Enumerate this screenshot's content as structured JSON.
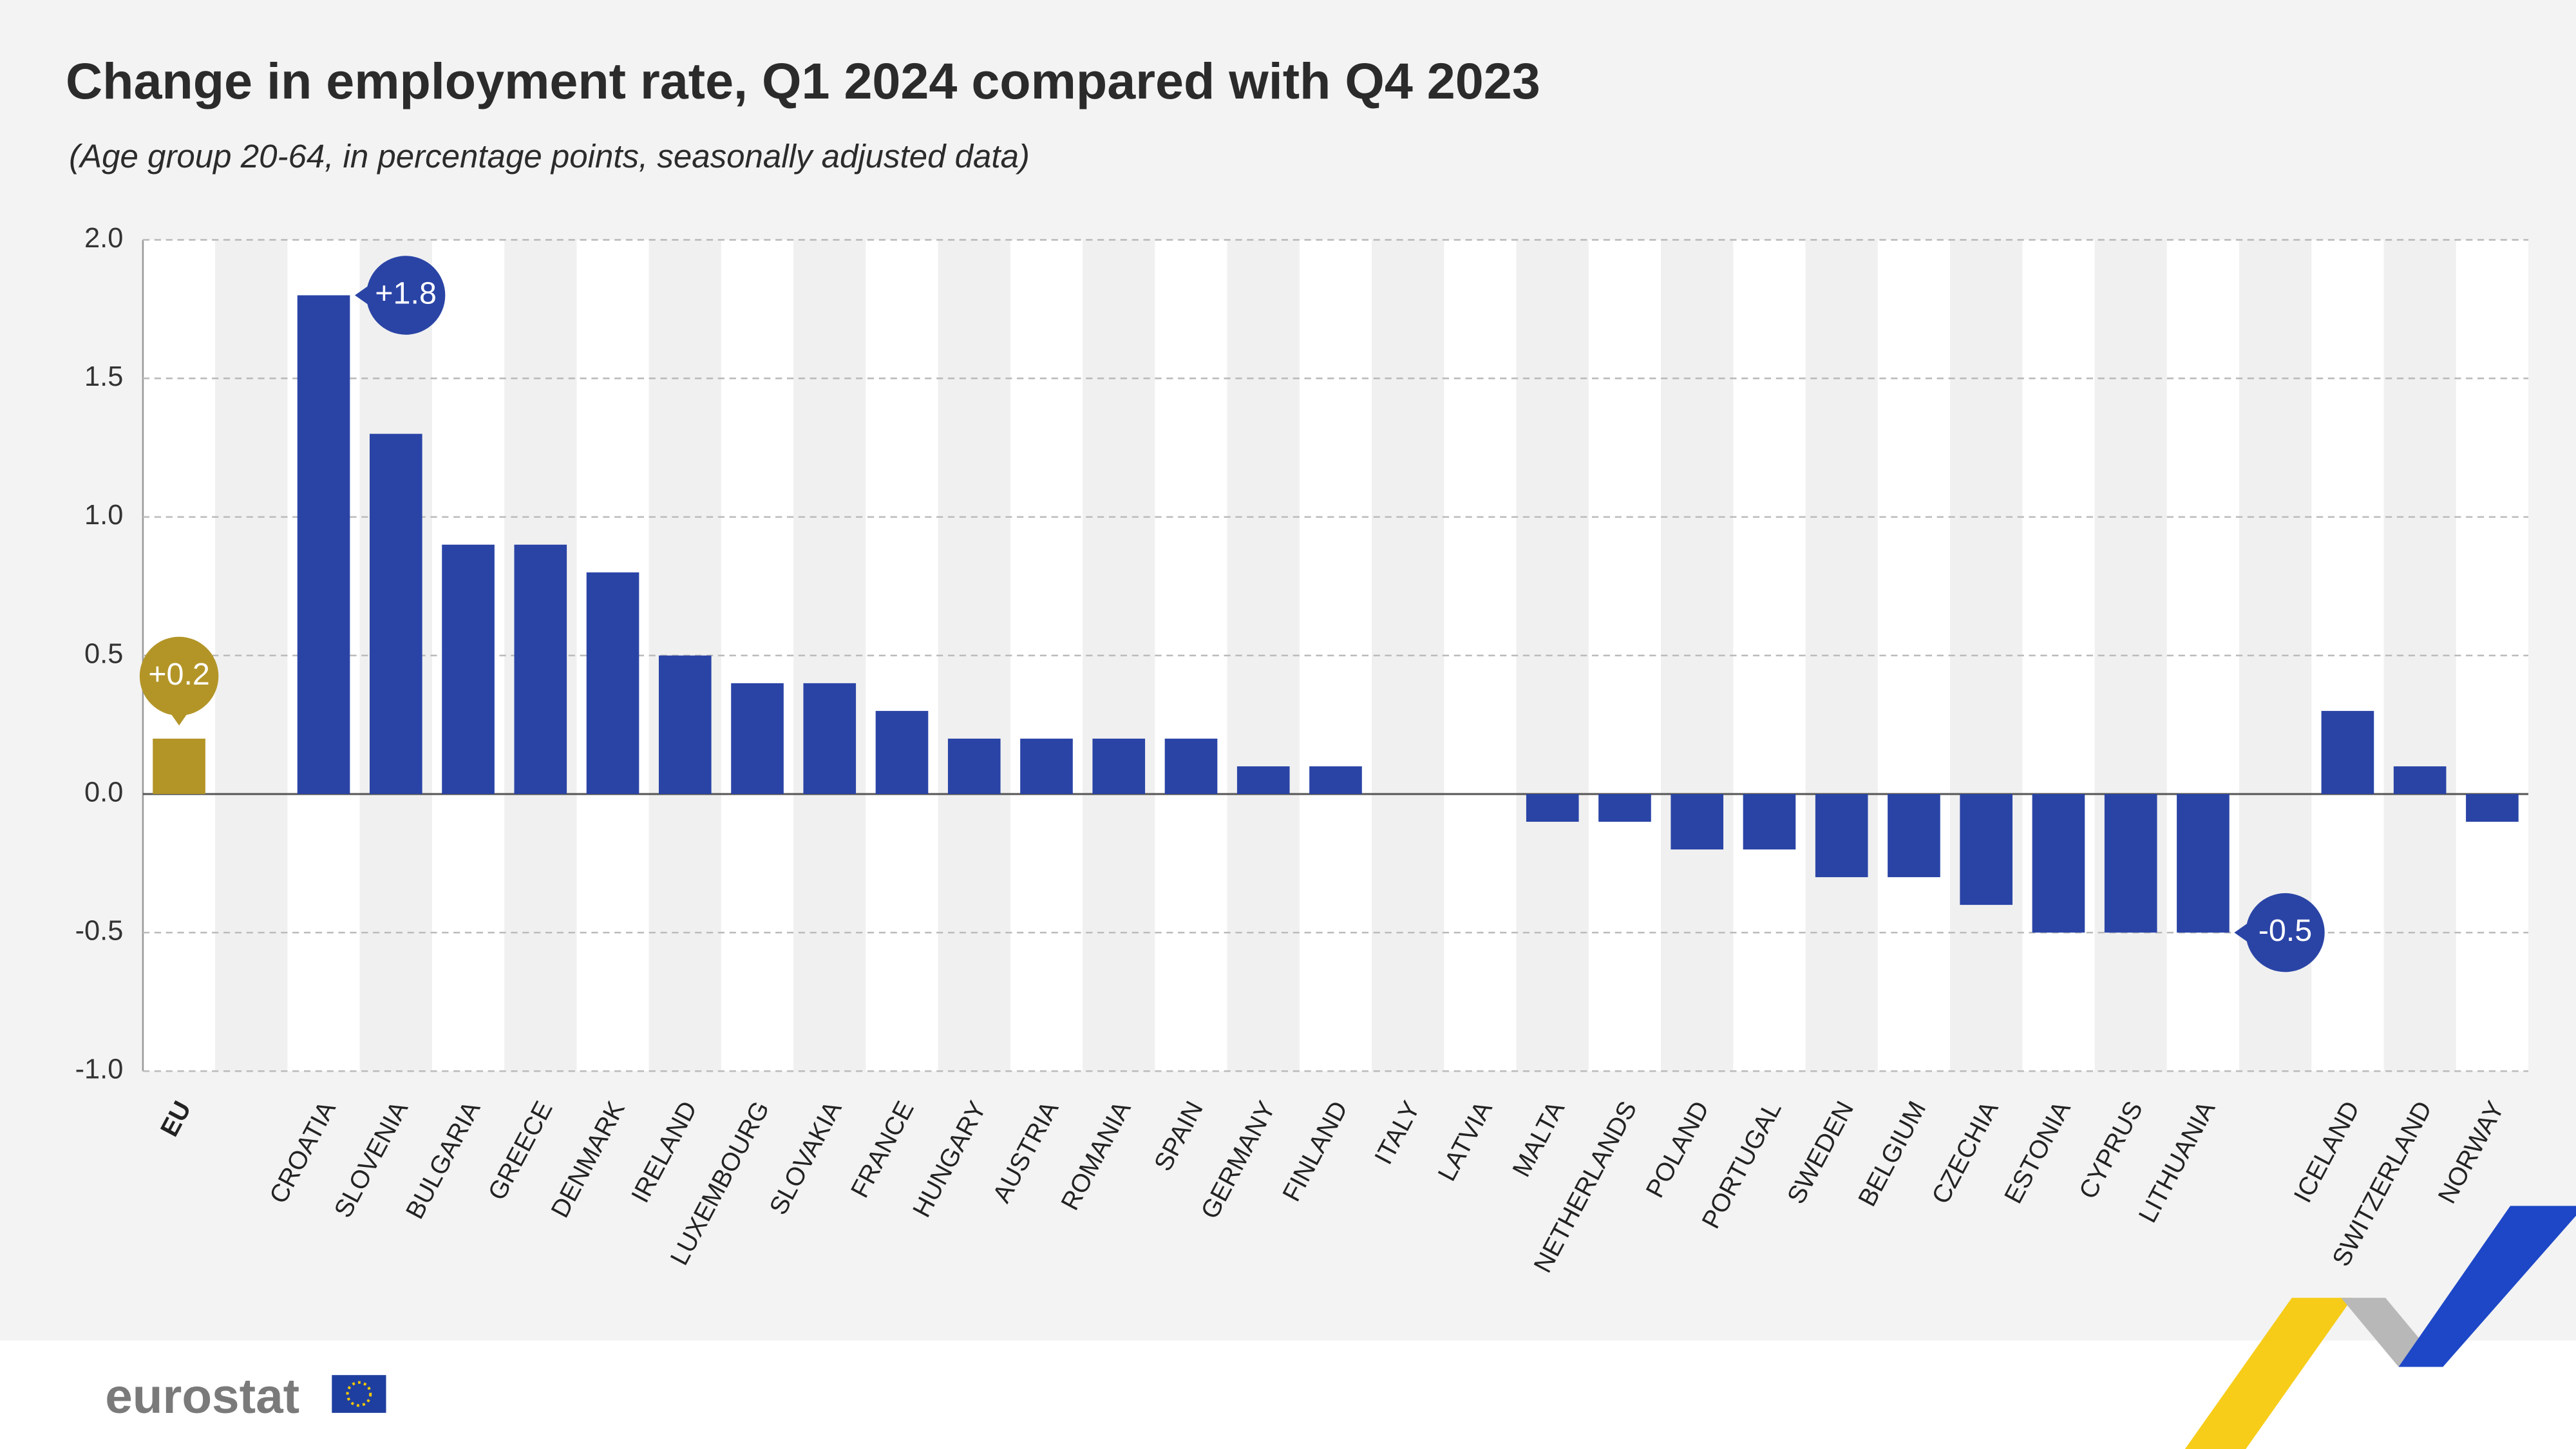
{
  "chart_data": {
    "type": "bar",
    "title": "Change in employment rate, Q1 2024 compared with Q4 2023",
    "subtitle": "(Age group 20-64, in percentage points, seasonally adjusted data)",
    "categories": [
      "EU",
      null,
      "CROATIA",
      "SLOVENIA",
      "BULGARIA",
      "GREECE",
      "DENMARK",
      "IRELAND",
      "LUXEMBOURG",
      "SLOVAKIA",
      "FRANCE",
      "HUNGARY",
      "AUSTRIA",
      "ROMANIA",
      "SPAIN",
      "GERMANY",
      "FINLAND",
      "ITALY",
      "LATVIA",
      "MALTA",
      "NETHERLANDS",
      "POLAND",
      "PORTUGAL",
      "SWEDEN",
      "BELGIUM",
      "CZECHIA",
      "ESTONIA",
      "CYPRUS",
      "LITHUANIA",
      null,
      "ICELAND",
      "SWITZERLAND",
      "NORWAY"
    ],
    "values": [
      0.2,
      null,
      1.8,
      1.3,
      0.9,
      0.9,
      0.8,
      0.5,
      0.4,
      0.4,
      0.3,
      0.2,
      0.2,
      0.2,
      0.2,
      0.1,
      0.1,
      0,
      0,
      -0.1,
      -0.1,
      -0.2,
      -0.2,
      -0.3,
      -0.3,
      -0.4,
      -0.5,
      -0.5,
      -0.5,
      null,
      0.3,
      0.1,
      -0.1
    ],
    "value_labels": [
      "+0.2",
      null,
      "+1.8",
      null,
      null,
      null,
      null,
      null,
      null,
      null,
      null,
      null,
      null,
      null,
      null,
      null,
      null,
      null,
      null,
      null,
      null,
      null,
      null,
      null,
      null,
      null,
      null,
      null,
      "-0.5",
      null,
      null,
      null,
      null
    ],
    "colors": [
      "#b39527",
      null,
      "#2a44a6",
      "#2a44a6",
      "#2a44a6",
      "#2a44a6",
      "#2a44a6",
      "#2a44a6",
      "#2a44a6",
      "#2a44a6",
      "#2a44a6",
      "#2a44a6",
      "#2a44a6",
      "#2a44a6",
      "#2a44a6",
      "#2a44a6",
      "#2a44a6",
      "#2a44a6",
      "#2a44a6",
      "#2a44a6",
      "#2a44a6",
      "#2a44a6",
      "#2a44a6",
      "#2a44a6",
      "#2a44a6",
      "#2a44a6",
      "#2a44a6",
      "#2a44a6",
      "#2a44a6",
      null,
      "#2a44a6",
      "#2a44a6",
      "#2a44a6"
    ],
    "ylim": [
      -1.0,
      2.0
    ],
    "yticks": [
      {
        "value": -1.0,
        "label": "-1.0"
      },
      {
        "value": -0.5,
        "label": "-0.5"
      },
      {
        "value": 0.0,
        "label": "0.0"
      },
      {
        "value": 0.5,
        "label": "0.5"
      },
      {
        "value": 1.0,
        "label": "1.0"
      },
      {
        "value": 1.5,
        "label": "1.5"
      },
      {
        "value": 2.0,
        "label": "2.0"
      }
    ],
    "grid": true
  },
  "footer": {
    "logo": "eurostat"
  }
}
